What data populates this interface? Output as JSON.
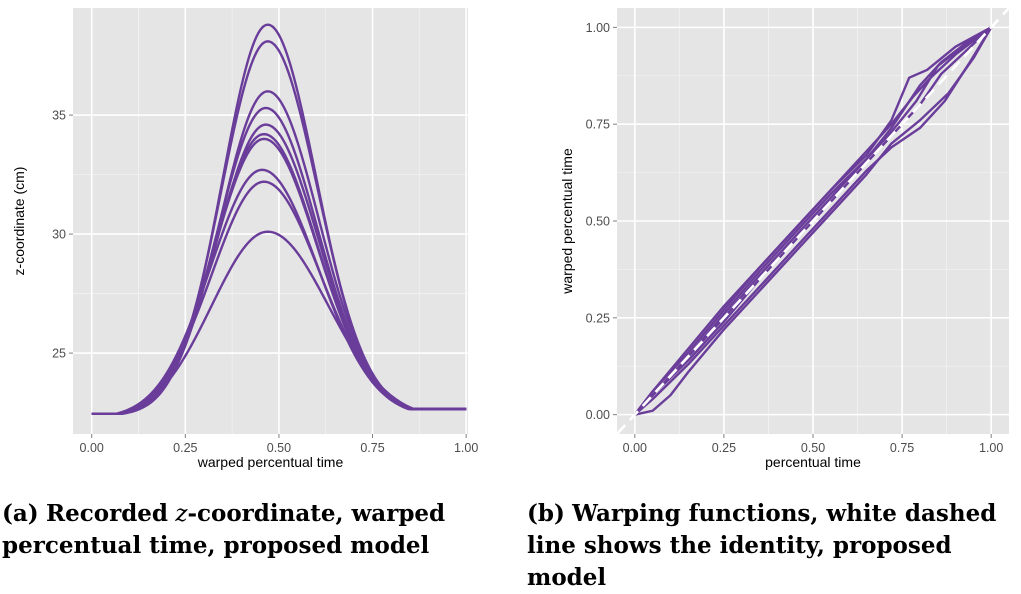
{
  "chart_data": [
    {
      "type": "line",
      "xlabel": "warped percentual time",
      "ylabel": "z-coordinate (cm)",
      "xlim": [
        -0.05,
        1.005
      ],
      "ylim": [
        21.6,
        39.5
      ],
      "xticks": [
        0.0,
        0.25,
        0.5,
        0.75,
        1.0
      ],
      "xtick_labels": [
        "0.00",
        "0.25",
        "0.50",
        "0.75",
        "1.00"
      ],
      "yticks": [
        25,
        30,
        35
      ],
      "ytick_labels": [
        "25",
        "30",
        "35"
      ],
      "grid": true,
      "legend": "none",
      "series_color": "#6a3d9a",
      "series": [
        {
          "peak": 38.8,
          "peak_x": 0.47,
          "width": 0.12,
          "base_start": 22.45,
          "base_end": 22.65
        },
        {
          "peak": 38.1,
          "peak_x": 0.47,
          "width": 0.123,
          "base_start": 22.45,
          "base_end": 22.65
        },
        {
          "peak": 36.0,
          "peak_x": 0.47,
          "width": 0.126,
          "base_start": 22.45,
          "base_end": 22.65
        },
        {
          "peak": 35.3,
          "peak_x": 0.465,
          "width": 0.128,
          "base_start": 22.45,
          "base_end": 22.65
        },
        {
          "peak": 34.6,
          "peak_x": 0.465,
          "width": 0.13,
          "base_start": 22.45,
          "base_end": 22.65
        },
        {
          "peak": 34.2,
          "peak_x": 0.46,
          "width": 0.132,
          "base_start": 22.45,
          "base_end": 22.65
        },
        {
          "peak": 34.0,
          "peak_x": 0.46,
          "width": 0.133,
          "base_start": 22.45,
          "base_end": 22.65
        },
        {
          "peak": 32.7,
          "peak_x": 0.455,
          "width": 0.138,
          "base_start": 22.45,
          "base_end": 22.65
        },
        {
          "peak": 32.2,
          "peak_x": 0.46,
          "width": 0.14,
          "base_start": 22.45,
          "base_end": 22.65
        },
        {
          "peak": 30.1,
          "peak_x": 0.47,
          "width": 0.15,
          "base_start": 22.45,
          "base_end": 22.65
        }
      ]
    },
    {
      "type": "line",
      "xlabel": "percentual time",
      "ylabel": "warped percentual time",
      "xlim": [
        -0.05,
        1.05
      ],
      "ylim": [
        -0.05,
        1.05
      ],
      "xticks": [
        0.0,
        0.25,
        0.5,
        0.75,
        1.0
      ],
      "xtick_labels": [
        "0.00",
        "0.25",
        "0.50",
        "0.75",
        "1.00"
      ],
      "yticks": [
        0.0,
        0.25,
        0.5,
        0.75,
        1.0
      ],
      "ytick_labels": [
        "0.00",
        "0.25",
        "0.50",
        "0.75",
        "1.00"
      ],
      "grid": true,
      "legend": "none",
      "series_color": "#6a3d9a",
      "identity_line": {
        "style": "white dashed",
        "points": [
          [
            -0.05,
            -0.05
          ],
          [
            1.05,
            1.05
          ]
        ]
      },
      "series": [
        {
          "points": [
            [
              0,
              0
            ],
            [
              0.05,
              0.06
            ],
            [
              0.15,
              0.16
            ],
            [
              0.25,
              0.27
            ],
            [
              0.35,
              0.38
            ],
            [
              0.45,
              0.48
            ],
            [
              0.55,
              0.58
            ],
            [
              0.65,
              0.67
            ],
            [
              0.72,
              0.76
            ],
            [
              0.77,
              0.87
            ],
            [
              0.82,
              0.89
            ],
            [
              0.9,
              0.95
            ],
            [
              1,
              1
            ]
          ]
        },
        {
          "points": [
            [
              0,
              0
            ],
            [
              0.05,
              0.05
            ],
            [
              0.15,
              0.15
            ],
            [
              0.25,
              0.26
            ],
            [
              0.35,
              0.37
            ],
            [
              0.45,
              0.47
            ],
            [
              0.55,
              0.57
            ],
            [
              0.65,
              0.66
            ],
            [
              0.72,
              0.74
            ],
            [
              0.8,
              0.85
            ],
            [
              0.86,
              0.91
            ],
            [
              0.93,
              0.96
            ],
            [
              1,
              1
            ]
          ]
        },
        {
          "points": [
            [
              0,
              0
            ],
            [
              0.05,
              0.05
            ],
            [
              0.15,
              0.14
            ],
            [
              0.25,
              0.24
            ],
            [
              0.35,
              0.35
            ],
            [
              0.45,
              0.45
            ],
            [
              0.55,
              0.55
            ],
            [
              0.65,
              0.65
            ],
            [
              0.72,
              0.72
            ],
            [
              0.8,
              0.8
            ],
            [
              0.86,
              0.88
            ],
            [
              0.93,
              0.94
            ],
            [
              1,
              1
            ]
          ]
        },
        {
          "points": [
            [
              0,
              0
            ],
            [
              0.05,
              0.04
            ],
            [
              0.15,
              0.13
            ],
            [
              0.25,
              0.23
            ],
            [
              0.35,
              0.33
            ],
            [
              0.45,
              0.43
            ],
            [
              0.55,
              0.53
            ],
            [
              0.65,
              0.63
            ],
            [
              0.72,
              0.69
            ],
            [
              0.8,
              0.74
            ],
            [
              0.87,
              0.81
            ],
            [
              0.94,
              0.91
            ],
            [
              1,
              1
            ]
          ]
        },
        {
          "points": [
            [
              0,
              0
            ],
            [
              0.05,
              0.01
            ],
            [
              0.1,
              0.05
            ],
            [
              0.15,
              0.11
            ],
            [
              0.25,
              0.22
            ],
            [
              0.35,
              0.32
            ],
            [
              0.45,
              0.42
            ],
            [
              0.55,
              0.52
            ],
            [
              0.65,
              0.62
            ],
            [
              0.72,
              0.7
            ],
            [
              0.8,
              0.76
            ],
            [
              0.88,
              0.83
            ],
            [
              0.95,
              0.92
            ],
            [
              1,
              1
            ]
          ]
        },
        {
          "points": [
            [
              0,
              0
            ],
            [
              0.05,
              0.06
            ],
            [
              0.15,
              0.17
            ],
            [
              0.25,
              0.28
            ],
            [
              0.35,
              0.38
            ],
            [
              0.45,
              0.48
            ],
            [
              0.55,
              0.58
            ],
            [
              0.65,
              0.68
            ],
            [
              0.72,
              0.75
            ],
            [
              0.78,
              0.82
            ],
            [
              0.83,
              0.87
            ],
            [
              0.9,
              0.93
            ],
            [
              1,
              1
            ]
          ]
        },
        {
          "points": [
            [
              0,
              0
            ],
            [
              0.05,
              0.05
            ],
            [
              0.15,
              0.15
            ],
            [
              0.25,
              0.25
            ],
            [
              0.35,
              0.36
            ],
            [
              0.45,
              0.46
            ],
            [
              0.55,
              0.56
            ],
            [
              0.65,
              0.66
            ],
            [
              0.72,
              0.73
            ],
            [
              0.79,
              0.81
            ],
            [
              0.85,
              0.9
            ],
            [
              0.92,
              0.95
            ],
            [
              1,
              1
            ]
          ]
        }
      ]
    }
  ],
  "captions": {
    "a_label": "(a)",
    "a_text": "Recorded",
    "a_var": "z",
    "a_rest": "-coordinate, warped percentual time, proposed model",
    "b_label": "(b)",
    "b_text": "Warping functions, white dashed line shows the identity, proposed model"
  }
}
